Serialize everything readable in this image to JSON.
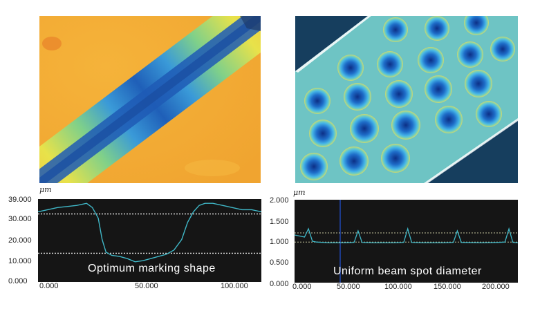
{
  "left_panel": {
    "unit": "μm",
    "caption": "Optimum marking shape",
    "y_ticks": [
      "39.000",
      "30.000",
      "20.000",
      "10.000",
      "0.000"
    ],
    "x_ticks": [
      "0.000",
      "50.000",
      "100.000"
    ]
  },
  "right_panel": {
    "unit": "μm",
    "caption": "Uniform beam spot diameter",
    "y_ticks": [
      "2.000",
      "1.500",
      "1.000",
      "0.500",
      "0.000"
    ],
    "x_ticks": [
      "0.000",
      "50.000",
      "100.000",
      "150.000",
      "200.000"
    ]
  },
  "colors": {
    "profile_line": "#40b8c8",
    "dotted_ref": "#e8e8e8",
    "plot_bg": "#151515"
  },
  "chart_data": [
    {
      "type": "line",
      "title": "Optimum marking shape",
      "ylabel": "μm",
      "xlim": [
        0,
        115
      ],
      "ylim": [
        0,
        39
      ],
      "reference_lines": [
        32,
        13.5
      ],
      "x": [
        0,
        5,
        10,
        15,
        20,
        25,
        28,
        31,
        33,
        35,
        38,
        42,
        46,
        50,
        54,
        58,
        62,
        66,
        70,
        74,
        77,
        80,
        83,
        86,
        90,
        95,
        100,
        105,
        110,
        115
      ],
      "y": [
        33,
        34,
        35,
        35.5,
        36,
        37,
        35,
        30,
        20,
        14,
        12.5,
        12,
        11,
        9.5,
        10,
        11,
        12,
        13,
        15,
        20,
        28,
        33,
        36,
        37,
        37,
        36,
        35,
        34,
        34,
        33
      ]
    },
    {
      "type": "line",
      "title": "Uniform beam spot diameter",
      "ylabel": "μm",
      "xlim": [
        0,
        225
      ],
      "ylim": [
        0,
        2
      ],
      "reference_lines": [
        1.2,
        0.98
      ],
      "x": [
        0,
        10,
        14,
        18,
        22,
        35,
        50,
        60,
        64,
        68,
        80,
        100,
        110,
        114,
        118,
        130,
        150,
        160,
        164,
        168,
        190,
        205,
        212,
        216,
        220,
        225
      ],
      "y": [
        1.15,
        1.1,
        1.3,
        1.0,
        0.98,
        0.96,
        0.96,
        0.97,
        1.25,
        0.97,
        0.96,
        0.96,
        0.97,
        1.3,
        0.97,
        0.96,
        0.96,
        0.97,
        1.25,
        0.97,
        0.96,
        0.97,
        0.98,
        1.3,
        0.97,
        0.96
      ]
    }
  ]
}
